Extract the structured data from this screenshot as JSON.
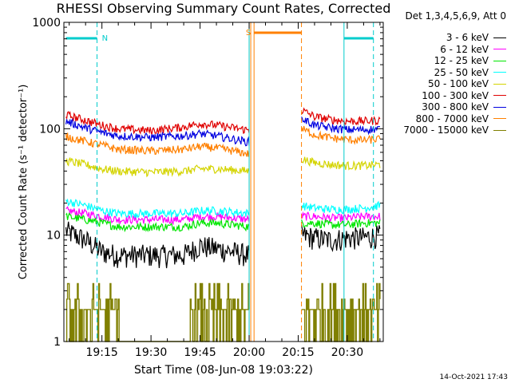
{
  "page": {
    "title": "RHESSI Observing Summary Count Rates, Corrected",
    "legend_header": "Det 1,3,4,5,6,9, Att 0",
    "timestamp": "14-Oct-2021 17:43"
  },
  "chart_data": {
    "type": "line",
    "title": "RHESSI Observing Summary Count Rates, Corrected",
    "xlabel": "Start Time (08-Jun-08 19:03:22)",
    "ylabel": "Corrected Count Rate (s⁻¹ detector⁻¹)",
    "yscale": "log",
    "ylim": [
      1,
      1000
    ],
    "xlim": [
      "19:03:22",
      "20:41:00"
    ],
    "yticks": [
      "1",
      "10",
      "100",
      "1000"
    ],
    "xticks": [
      "19:15",
      "19:30",
      "19:45",
      "20:00",
      "20:15",
      "20:30"
    ],
    "xtick_minutes": [
      15,
      30,
      45,
      60,
      75,
      90
    ],
    "grid": false,
    "legend_position": "right",
    "data_gap": [
      "20:00",
      "20:16"
    ],
    "series": [
      {
        "name": "3 - 6 keV",
        "color": "#000000",
        "x": [
          "19:04",
          "19:10",
          "19:15",
          "19:20",
          "19:30",
          "19:40",
          "19:45",
          "19:50",
          "19:55",
          "20:00",
          "20:16",
          "20:20",
          "20:25",
          "20:30",
          "20:35",
          "20:40"
        ],
        "values": [
          11,
          9,
          7,
          6.5,
          6.5,
          6.5,
          8,
          7.5,
          7,
          6.5,
          10,
          9.5,
          9,
          9.5,
          9.5,
          10
        ]
      },
      {
        "name": "6 - 12 keV",
        "color": "#ff00ff",
        "x": [
          "19:04",
          "19:10",
          "19:15",
          "19:20",
          "19:30",
          "19:40",
          "19:45",
          "19:50",
          "19:55",
          "20:00",
          "20:16",
          "20:20",
          "20:25",
          "20:30",
          "20:35",
          "20:40"
        ],
        "values": [
          17,
          16,
          15,
          14,
          14,
          14,
          15,
          15,
          14.5,
          14,
          15,
          15,
          14.5,
          14.5,
          15,
          15
        ]
      },
      {
        "name": "12 - 25 keV",
        "color": "#00e600",
        "x": [
          "19:04",
          "19:10",
          "19:15",
          "19:20",
          "19:30",
          "19:40",
          "19:45",
          "19:50",
          "19:55",
          "20:00",
          "20:16",
          "20:20",
          "20:25",
          "20:30",
          "20:35",
          "20:40"
        ],
        "values": [
          15,
          14,
          13,
          12,
          12,
          12,
          13,
          13,
          12.5,
          12,
          13,
          13,
          12.5,
          12.5,
          13,
          13
        ]
      },
      {
        "name": "25 - 50 keV",
        "color": "#00ffff",
        "x": [
          "19:04",
          "19:10",
          "19:15",
          "19:20",
          "19:30",
          "19:40",
          "19:45",
          "19:50",
          "19:55",
          "20:00",
          "20:16",
          "20:20",
          "20:25",
          "20:30",
          "20:35",
          "20:40"
        ],
        "values": [
          21,
          19,
          17,
          16,
          16,
          16,
          17,
          17,
          16.5,
          16,
          19,
          18,
          17.5,
          17.5,
          18,
          19
        ]
      },
      {
        "name": "50 - 100 keV",
        "color": "#d4d400",
        "x": [
          "19:04",
          "19:10",
          "19:15",
          "19:20",
          "19:30",
          "19:40",
          "19:45",
          "19:50",
          "19:55",
          "20:00",
          "20:16",
          "20:20",
          "20:25",
          "20:30",
          "20:35",
          "20:40"
        ],
        "values": [
          50,
          46,
          42,
          40,
          39,
          40,
          42,
          42,
          41,
          40,
          52,
          48,
          46,
          45,
          45,
          46
        ]
      },
      {
        "name": "100 - 300 keV",
        "color": "#e00000",
        "x": [
          "19:04",
          "19:10",
          "19:15",
          "19:20",
          "19:30",
          "19:40",
          "19:45",
          "19:50",
          "19:55",
          "20:00",
          "20:16",
          "20:20",
          "20:25",
          "20:30",
          "20:35",
          "20:40"
        ],
        "values": [
          135,
          120,
          108,
          100,
          96,
          104,
          112,
          108,
          102,
          97,
          150,
          130,
          122,
          118,
          118,
          120
        ]
      },
      {
        "name": "300 - 800 keV",
        "color": "#0000e0",
        "x": [
          "19:04",
          "19:10",
          "19:15",
          "19:20",
          "19:30",
          "19:40",
          "19:45",
          "19:50",
          "19:55",
          "20:00",
          "20:16",
          "20:20",
          "20:25",
          "20:30",
          "20:35",
          "20:40"
        ],
        "values": [
          118,
          102,
          92,
          86,
          83,
          86,
          90,
          86,
          80,
          75,
          125,
          108,
          102,
          98,
          98,
          100
        ]
      },
      {
        "name": "800 - 7000 keV",
        "color": "#ff8000",
        "x": [
          "19:04",
          "19:10",
          "19:15",
          "19:20",
          "19:30",
          "19:40",
          "19:45",
          "19:50",
          "19:55",
          "20:00",
          "20:16",
          "20:20",
          "20:25",
          "20:30",
          "20:35",
          "20:40"
        ],
        "values": [
          85,
          76,
          70,
          64,
          62,
          64,
          68,
          66,
          62,
          58,
          100,
          88,
          82,
          79,
          78,
          80
        ]
      },
      {
        "name": "7000 - 15000 keV",
        "color": "#808000",
        "x": [
          "19:04",
          "19:07",
          "19:10",
          "19:13",
          "19:16",
          "19:20",
          "19:25",
          "19:35",
          "19:45",
          "19:50",
          "19:55",
          "20:00",
          "20:16",
          "20:20",
          "20:25",
          "20:30",
          "20:35",
          "20:40"
        ],
        "values": [
          2.5,
          2,
          2.5,
          2,
          1.5,
          1,
          1,
          1,
          2.5,
          2,
          2,
          1,
          2,
          2.5,
          2,
          2,
          2,
          2.5
        ]
      }
    ],
    "annotations": [
      {
        "text": "N",
        "color": "#00cccc"
      },
      {
        "text": "S",
        "color": "#ff8000"
      }
    ]
  }
}
